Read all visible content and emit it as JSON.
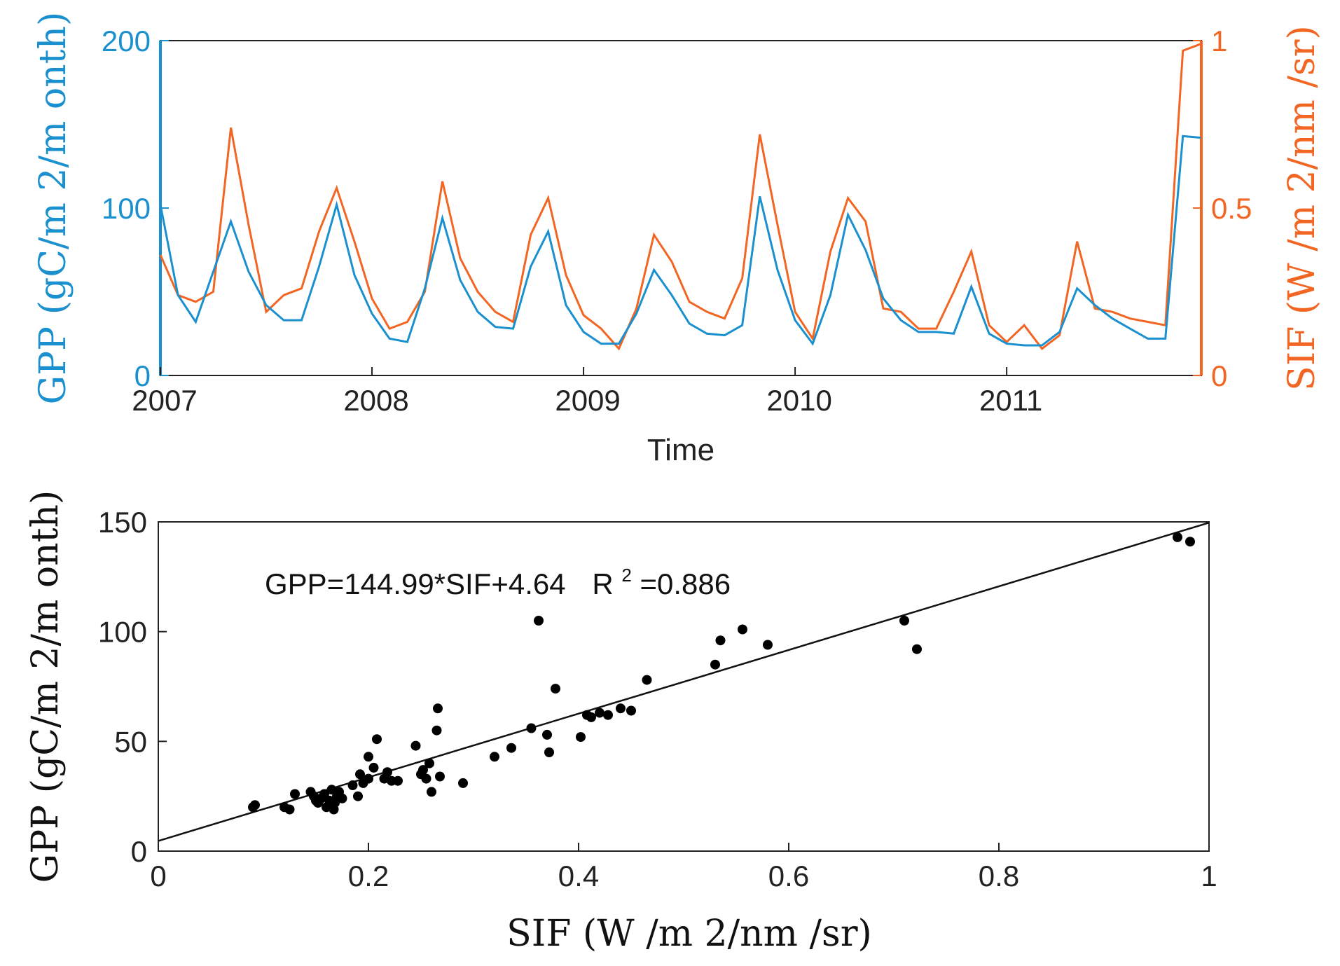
{
  "colors": {
    "gpp": "#1a90cf",
    "sif": "#f26522",
    "axis": "#222222",
    "points": "#000000"
  },
  "chart_data": [
    {
      "type": "line",
      "xlabel": "Time",
      "ylabel_left": "GPP (gC/m 2/m onth)",
      "ylabel_right": "SIF (W /m 2/nm /sr)",
      "xlim": [
        2007,
        2011.92
      ],
      "ylim_left": [
        0,
        200
      ],
      "ylim_right": [
        0,
        1
      ],
      "x_ticks": [
        "2007",
        "2008",
        "2009",
        "2010",
        "2011"
      ],
      "y_ticks_left": [
        "0",
        "100",
        "200"
      ],
      "y_ticks_right": [
        "0",
        "0.5",
        "1"
      ],
      "x": [
        2007.0,
        2007.083,
        2007.167,
        2007.25,
        2007.333,
        2007.417,
        2007.5,
        2007.583,
        2007.667,
        2007.75,
        2007.833,
        2007.917,
        2008.0,
        2008.083,
        2008.167,
        2008.25,
        2008.333,
        2008.417,
        2008.5,
        2008.583,
        2008.667,
        2008.75,
        2008.833,
        2008.917,
        2009.0,
        2009.083,
        2009.167,
        2009.25,
        2009.333,
        2009.417,
        2009.5,
        2009.583,
        2009.667,
        2009.75,
        2009.833,
        2009.917,
        2010.0,
        2010.083,
        2010.167,
        2010.25,
        2010.333,
        2010.417,
        2010.5,
        2010.583,
        2010.667,
        2010.75,
        2010.833,
        2010.917,
        2011.0,
        2011.083,
        2011.167,
        2011.25,
        2011.333,
        2011.417,
        2011.5,
        2011.583,
        2011.667,
        2011.75,
        2011.833,
        2011.917
      ],
      "series": [
        {
          "name": "GPP",
          "axis": "left",
          "values": [
            102,
            48,
            32,
            62,
            92,
            62,
            42,
            33,
            33,
            65,
            102,
            60,
            37,
            22,
            20,
            52,
            94,
            57,
            38,
            29,
            28,
            65,
            86,
            42,
            26,
            19,
            19,
            37,
            63,
            48,
            31,
            25,
            24,
            30,
            107,
            63,
            33,
            19,
            48,
            96,
            75,
            46,
            33,
            26,
            26,
            25,
            53,
            25,
            19,
            18,
            18,
            26,
            52,
            42,
            34,
            28,
            22,
            22,
            143,
            142
          ]
        },
        {
          "name": "SIF",
          "axis": "right",
          "values": [
            0.36,
            0.24,
            0.22,
            0.25,
            0.74,
            0.45,
            0.19,
            0.24,
            0.26,
            0.43,
            0.56,
            0.4,
            0.23,
            0.14,
            0.16,
            0.25,
            0.58,
            0.35,
            0.25,
            0.19,
            0.16,
            0.42,
            0.53,
            0.3,
            0.18,
            0.14,
            0.08,
            0.2,
            0.42,
            0.34,
            0.22,
            0.19,
            0.17,
            0.29,
            0.72,
            0.45,
            0.19,
            0.11,
            0.37,
            0.53,
            0.46,
            0.2,
            0.19,
            0.14,
            0.14,
            0.25,
            0.37,
            0.15,
            0.1,
            0.15,
            0.08,
            0.12,
            0.4,
            0.2,
            0.19,
            0.17,
            0.16,
            0.15,
            0.97,
            0.99
          ]
        }
      ]
    },
    {
      "type": "scatter",
      "xlabel": "SIF (W /m 2/nm /sr)",
      "ylabel": "GPP (gC/m 2/m onth)",
      "xlim": [
        0,
        1
      ],
      "ylim": [
        0,
        150
      ],
      "x_ticks": [
        "0",
        "0.2",
        "0.4",
        "0.6",
        "0.8",
        "1"
      ],
      "y_ticks": [
        "0",
        "50",
        "100",
        "150"
      ],
      "annotation": {
        "equation": "GPP=144.99*SIF+4.64",
        "r2_prefix": "R",
        "r2_sup": "2",
        "r2_value": "=0.886"
      },
      "fit": {
        "slope": 144.99,
        "intercept": 4.64
      },
      "points": [
        [
          0.09,
          20
        ],
        [
          0.092,
          21
        ],
        [
          0.12,
          20
        ],
        [
          0.125,
          19
        ],
        [
          0.13,
          26
        ],
        [
          0.145,
          27
        ],
        [
          0.148,
          25
        ],
        [
          0.15,
          23
        ],
        [
          0.152,
          22
        ],
        [
          0.155,
          24
        ],
        [
          0.158,
          26
        ],
        [
          0.16,
          20
        ],
        [
          0.163,
          23
        ],
        [
          0.165,
          28
        ],
        [
          0.167,
          19
        ],
        [
          0.168,
          22
        ],
        [
          0.17,
          25
        ],
        [
          0.172,
          27
        ],
        [
          0.175,
          24
        ],
        [
          0.185,
          30
        ],
        [
          0.19,
          25
        ],
        [
          0.192,
          35
        ],
        [
          0.195,
          31
        ],
        [
          0.2,
          43
        ],
        [
          0.2,
          33
        ],
        [
          0.205,
          38
        ],
        [
          0.208,
          51
        ],
        [
          0.215,
          33
        ],
        [
          0.218,
          36
        ],
        [
          0.222,
          32
        ],
        [
          0.228,
          32
        ],
        [
          0.245,
          48
        ],
        [
          0.25,
          35
        ],
        [
          0.252,
          37
        ],
        [
          0.255,
          33
        ],
        [
          0.258,
          40
        ],
        [
          0.26,
          27
        ],
        [
          0.265,
          55
        ],
        [
          0.266,
          65
        ],
        [
          0.268,
          34
        ],
        [
          0.29,
          31
        ],
        [
          0.32,
          43
        ],
        [
          0.336,
          47
        ],
        [
          0.355,
          56
        ],
        [
          0.362,
          105
        ],
        [
          0.37,
          53
        ],
        [
          0.372,
          45
        ],
        [
          0.378,
          74
        ],
        [
          0.402,
          52
        ],
        [
          0.408,
          62
        ],
        [
          0.412,
          61
        ],
        [
          0.42,
          63
        ],
        [
          0.428,
          62
        ],
        [
          0.44,
          65
        ],
        [
          0.45,
          64
        ],
        [
          0.465,
          78
        ],
        [
          0.53,
          85
        ],
        [
          0.535,
          96
        ],
        [
          0.556,
          101
        ],
        [
          0.58,
          94
        ],
        [
          0.71,
          105
        ],
        [
          0.722,
          92
        ],
        [
          0.97,
          143
        ],
        [
          0.982,
          141
        ]
      ]
    }
  ]
}
